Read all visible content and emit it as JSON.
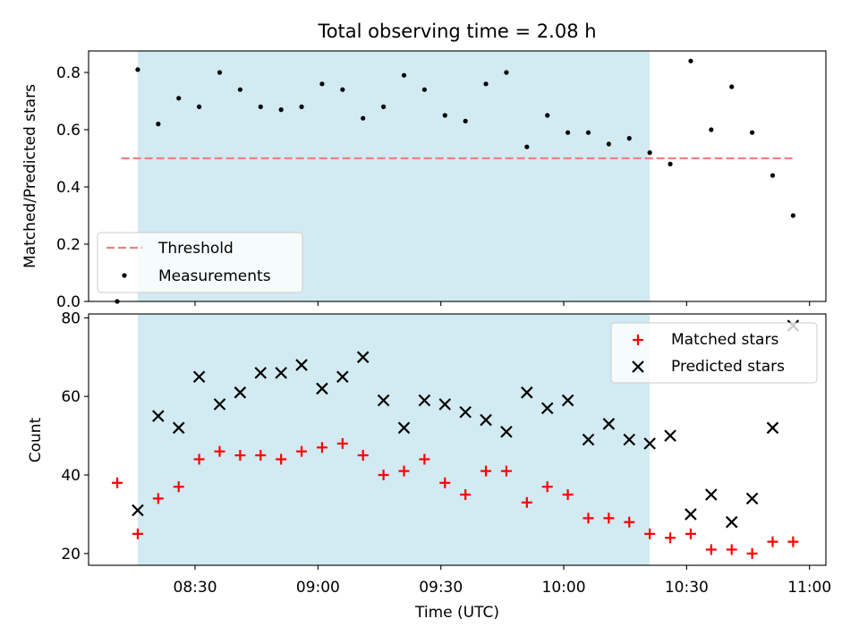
{
  "figure_title": "Total observing time = 2.08 h",
  "colors": {
    "shade": "#add8e6",
    "threshold": "#f08080",
    "measurement": "#000000",
    "matched": "#ff0000",
    "predicted": "#000000"
  },
  "chart_data": [
    {
      "type": "scatter",
      "panel": "top",
      "title": "Total observing time = 2.08 h",
      "ylabel": "Matched/Predicted stars",
      "xlabel": "",
      "xlim": [
        "08:04",
        "11:04"
      ],
      "ylim": [
        0,
        0.875
      ],
      "yticks": [
        0.0,
        0.2,
        0.4,
        0.6,
        0.8
      ],
      "ytick_labels": [
        "0.0",
        "0.2",
        "0.4",
        "0.6",
        "0.8"
      ],
      "grid": false,
      "legend_position": "lower-left",
      "shaded_interval": [
        "08:16",
        "10:21"
      ],
      "threshold": {
        "name": "Threshold",
        "y": 0.5,
        "x_from": "08:12",
        "x_to": "10:56"
      },
      "series": [
        {
          "name": "Measurements",
          "x": [
            "08:11",
            "08:16",
            "08:21",
            "08:26",
            "08:31",
            "08:36",
            "08:41",
            "08:46",
            "08:51",
            "08:56",
            "09:01",
            "09:06",
            "09:11",
            "09:16",
            "09:21",
            "09:26",
            "09:31",
            "09:36",
            "09:41",
            "09:46",
            "09:51",
            "09:56",
            "10:01",
            "10:06",
            "10:11",
            "10:16",
            "10:21",
            "10:26",
            "10:31",
            "10:36",
            "10:41",
            "10:46",
            "10:51",
            "10:56"
          ],
          "y": [
            0.0,
            0.81,
            0.62,
            0.71,
            0.68,
            0.8,
            0.74,
            0.68,
            0.67,
            0.68,
            0.76,
            0.74,
            0.64,
            0.68,
            0.79,
            0.74,
            0.65,
            0.63,
            0.76,
            0.8,
            0.54,
            0.65,
            0.59,
            0.59,
            0.55,
            0.57,
            0.52,
            0.48,
            0.84,
            0.6,
            0.75,
            0.59,
            0.44,
            0.3
          ]
        }
      ]
    },
    {
      "type": "scatter",
      "panel": "bottom",
      "title": "",
      "ylabel": "Count",
      "xlabel": "Time (UTC)",
      "xlim": [
        "08:04",
        "11:04"
      ],
      "ylim": [
        17,
        81
      ],
      "yticks": [
        20,
        40,
        60,
        80
      ],
      "ytick_labels": [
        "20",
        "40",
        "60",
        "80"
      ],
      "xticks": [
        "08:30",
        "09:00",
        "09:30",
        "10:00",
        "10:30",
        "11:00"
      ],
      "xtick_labels": [
        "08:30",
        "09:00",
        "09:30",
        "10:00",
        "10:30",
        "11:00"
      ],
      "grid": false,
      "legend_position": "upper-right",
      "shaded_interval": [
        "08:16",
        "10:21"
      ],
      "x": [
        "08:11",
        "08:16",
        "08:21",
        "08:26",
        "08:31",
        "08:36",
        "08:41",
        "08:46",
        "08:51",
        "08:56",
        "09:01",
        "09:06",
        "09:11",
        "09:16",
        "09:21",
        "09:26",
        "09:31",
        "09:36",
        "09:41",
        "09:46",
        "09:51",
        "09:56",
        "10:01",
        "10:06",
        "10:11",
        "10:16",
        "10:21",
        "10:26",
        "10:31",
        "10:36",
        "10:41",
        "10:46",
        "10:51",
        "10:56"
      ],
      "series": [
        {
          "name": "Matched stars",
          "values": [
            38,
            25,
            34,
            37,
            44,
            46,
            45,
            45,
            44,
            46,
            47,
            48,
            45,
            40,
            41,
            44,
            38,
            35,
            41,
            41,
            33,
            37,
            35,
            29,
            29,
            28,
            25,
            24,
            25,
            21,
            21,
            20,
            23,
            23
          ]
        },
        {
          "name": "Predicted stars",
          "values": [
            null,
            31,
            55,
            52,
            65,
            58,
            61,
            66,
            66,
            68,
            62,
            65,
            70,
            59,
            52,
            59,
            58,
            56,
            54,
            51,
            61,
            57,
            59,
            49,
            53,
            49,
            48,
            50,
            30,
            35,
            28,
            34,
            52,
            78
          ]
        }
      ]
    }
  ]
}
